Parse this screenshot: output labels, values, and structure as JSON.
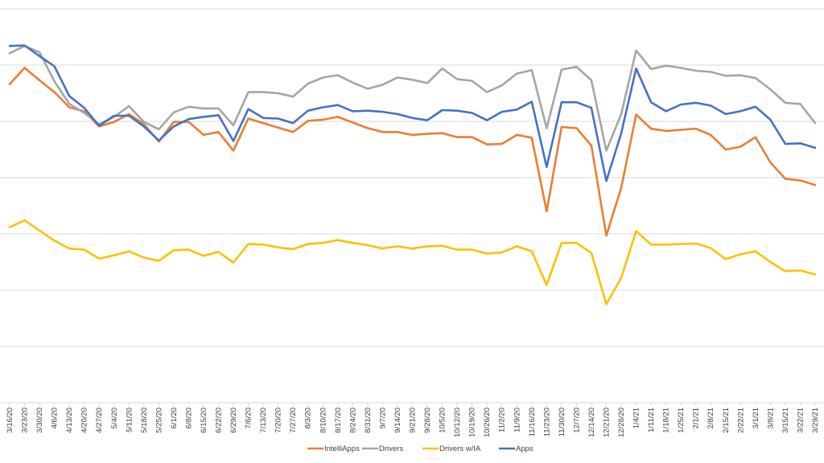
{
  "chart_data": {
    "type": "line",
    "title": "",
    "xlabel": "",
    "ylabel": "",
    "ylim": [
      0,
      7
    ],
    "grid": true,
    "legend_position": "bottom",
    "y_tick_labels_shown": false,
    "categories": [
      "3/16/20",
      "3/23/20",
      "3/30/20",
      "4/6/20",
      "4/13/20",
      "4/20/20",
      "4/27/20",
      "5/4/20",
      "5/11/20",
      "5/18/20",
      "5/25/20",
      "6/1/20",
      "6/8/20",
      "6/15/20",
      "6/22/20",
      "6/29/20",
      "7/6/20",
      "7/13/20",
      "7/20/20",
      "7/27/20",
      "8/3/20",
      "8/10/20",
      "8/17/20",
      "8/24/20",
      "8/31/20",
      "9/7/20",
      "9/14/20",
      "9/21/20",
      "9/28/20",
      "10/5/20",
      "10/12/20",
      "10/19/20",
      "10/26/20",
      "11/2/20",
      "11/9/20",
      "11/16/20",
      "11/23/20",
      "11/30/20",
      "12/7/20",
      "12/14/20",
      "12/21/20",
      "12/28/20",
      "1/4/21",
      "1/11/21",
      "1/18/21",
      "1/25/21",
      "2/1/21",
      "2/8/21",
      "2/15/21",
      "2/22/21",
      "3/1/21",
      "3/8/21",
      "3/15/21",
      "3/22/21",
      "3/29/21"
    ],
    "series": [
      {
        "name": "IntelliApps",
        "color": "#ED7D31",
        "values": [
          5.66,
          5.95,
          5.73,
          5.52,
          5.25,
          5.18,
          4.91,
          4.99,
          5.13,
          4.95,
          4.64,
          4.99,
          4.99,
          4.76,
          4.81,
          4.48,
          5.05,
          4.97,
          4.89,
          4.81,
          5.01,
          5.03,
          5.08,
          4.98,
          4.88,
          4.81,
          4.81,
          4.76,
          4.78,
          4.79,
          4.72,
          4.72,
          4.59,
          4.6,
          4.76,
          4.71,
          3.4,
          4.9,
          4.88,
          4.57,
          2.97,
          3.82,
          5.12,
          4.87,
          4.83,
          4.85,
          4.87,
          4.76,
          4.5,
          4.55,
          4.72,
          4.27,
          3.98,
          3.95,
          3.87
        ]
      },
      {
        "name": "Drivers",
        "color": "#A5A5A5",
        "values": [
          6.21,
          6.34,
          6.23,
          5.71,
          5.31,
          5.15,
          4.95,
          5.08,
          5.27,
          4.99,
          4.86,
          5.16,
          5.26,
          5.23,
          5.23,
          4.93,
          5.52,
          5.52,
          5.5,
          5.44,
          5.67,
          5.78,
          5.82,
          5.69,
          5.58,
          5.65,
          5.78,
          5.74,
          5.68,
          5.94,
          5.75,
          5.72,
          5.52,
          5.64,
          5.85,
          5.91,
          4.88,
          5.92,
          5.97,
          5.73,
          4.48,
          5.13,
          6.26,
          5.93,
          5.99,
          5.95,
          5.9,
          5.88,
          5.81,
          5.82,
          5.77,
          5.57,
          5.33,
          5.31,
          4.97
        ]
      },
      {
        "name": "Drivers w/IA",
        "color": "#FFC000",
        "values": [
          3.12,
          3.24,
          3.06,
          2.88,
          2.74,
          2.72,
          2.56,
          2.62,
          2.69,
          2.58,
          2.52,
          2.71,
          2.72,
          2.61,
          2.68,
          2.49,
          2.82,
          2.81,
          2.76,
          2.73,
          2.82,
          2.84,
          2.89,
          2.84,
          2.8,
          2.74,
          2.78,
          2.74,
          2.78,
          2.79,
          2.72,
          2.72,
          2.65,
          2.67,
          2.78,
          2.69,
          2.09,
          2.84,
          2.84,
          2.66,
          1.75,
          2.22,
          3.05,
          2.81,
          2.81,
          2.82,
          2.83,
          2.75,
          2.55,
          2.64,
          2.69,
          2.5,
          2.34,
          2.35,
          2.28
        ]
      },
      {
        "name": "Apps",
        "color": "#4472C4",
        "values": [
          6.34,
          6.35,
          6.16,
          5.98,
          5.45,
          5.24,
          4.92,
          5.1,
          5.1,
          4.91,
          4.66,
          4.91,
          5.04,
          5.08,
          5.11,
          4.65,
          5.22,
          5.06,
          5.05,
          4.97,
          5.19,
          5.25,
          5.29,
          5.18,
          5.19,
          5.17,
          5.13,
          5.06,
          5.02,
          5.2,
          5.19,
          5.15,
          5.02,
          5.17,
          5.21,
          5.35,
          4.19,
          5.34,
          5.34,
          5.24,
          3.94,
          4.79,
          5.94,
          5.34,
          5.18,
          5.3,
          5.33,
          5.28,
          5.13,
          5.18,
          5.26,
          5.03,
          4.6,
          4.61,
          4.53
        ]
      }
    ]
  }
}
